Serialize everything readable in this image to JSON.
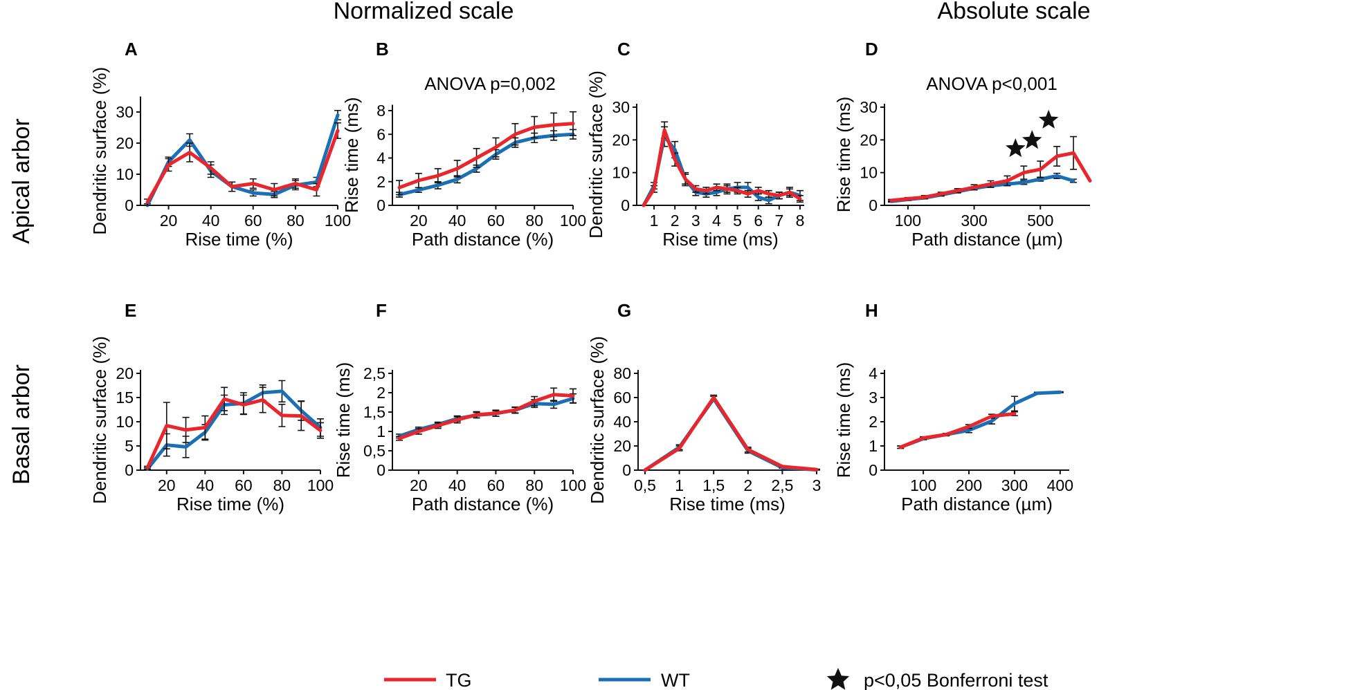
{
  "figure": {
    "column_titles": [
      "Normalized scale",
      "Absolute scale"
    ],
    "row_titles": [
      "Apical arbor",
      "Basal arbor"
    ],
    "legend": {
      "items": [
        {
          "label": "TG",
          "color": "#e8262b"
        },
        {
          "label": "WT",
          "color": "#1a6fb5"
        }
      ],
      "significance_label": "p<0,05 Bonferroni test"
    }
  },
  "chart_data": [
    {
      "panel": "A",
      "type": "line",
      "title": "",
      "xlabel": "Rise time (%)",
      "ylabel": "Dendritic surface (%)",
      "xlim": [
        10,
        100
      ],
      "ylim": [
        0,
        35
      ],
      "xticks": [
        20,
        40,
        60,
        80,
        100
      ],
      "xtick_labels": [
        "20",
        "40",
        "60",
        "80",
        "100"
      ],
      "yticks": [
        0,
        10,
        20,
        30
      ],
      "ytick_labels": [
        "0",
        "10",
        "20",
        "30"
      ],
      "x": [
        10,
        20,
        30,
        40,
        50,
        60,
        70,
        80,
        90,
        100
      ],
      "series": [
        {
          "name": "TG",
          "values": [
            1,
            13,
            17,
            12,
            6,
            7,
            5,
            7,
            5,
            24
          ],
          "errors": [
            1,
            2,
            3,
            2,
            1.5,
            1.5,
            2,
            1.5,
            2,
            2.5
          ]
        },
        {
          "name": "WT",
          "values": [
            0,
            14,
            21,
            11,
            6,
            4,
            3.5,
            6.5,
            7.5,
            29
          ],
          "errors": [
            0.5,
            1.5,
            2,
            2,
            1.5,
            1,
            1,
            1.5,
            1.5,
            1.5
          ]
        }
      ],
      "annotation": "",
      "stars_x": []
    },
    {
      "panel": "B",
      "type": "line",
      "title": "",
      "xlabel": "Path distance (%)",
      "ylabel": "Rise time (ms)",
      "xlim": [
        10,
        100
      ],
      "ylim": [
        0,
        8.5
      ],
      "xticks": [
        20,
        40,
        60,
        80,
        100
      ],
      "xtick_labels": [
        "20",
        "40",
        "60",
        "80",
        "100"
      ],
      "yticks": [
        0,
        2,
        4,
        6,
        8
      ],
      "ytick_labels": [
        "0",
        "2",
        "4",
        "6",
        "8"
      ],
      "x": [
        10,
        20,
        30,
        40,
        50,
        60,
        70,
        80,
        90,
        100
      ],
      "series": [
        {
          "name": "TG",
          "values": [
            1.5,
            2.1,
            2.5,
            3.1,
            4.0,
            4.9,
            6.0,
            6.6,
            6.8,
            6.9
          ],
          "errors": [
            0.6,
            0.6,
            0.6,
            0.7,
            0.8,
            0.8,
            0.9,
            0.9,
            1.0,
            1.0
          ]
        },
        {
          "name": "WT",
          "values": [
            0.9,
            1.3,
            1.7,
            2.2,
            3.1,
            4.3,
            5.3,
            5.7,
            5.9,
            6.0
          ],
          "errors": [
            0.2,
            0.2,
            0.3,
            0.3,
            0.3,
            0.4,
            0.4,
            0.4,
            0.4,
            0.4
          ]
        }
      ],
      "annotation": "ANOVA p=0,002",
      "stars_x": []
    },
    {
      "panel": "C",
      "type": "line",
      "title": "",
      "xlabel": "Rise time (ms)",
      "ylabel": "Dendritic surface (%)",
      "xlim": [
        0.5,
        8.2
      ],
      "ylim": [
        0,
        30
      ],
      "xticks": [
        1,
        2,
        3,
        4,
        5,
        6,
        7,
        8
      ],
      "xtick_labels": [
        "1",
        "2",
        "3",
        "4",
        "5",
        "6",
        "7",
        "8"
      ],
      "yticks": [
        0,
        10,
        20,
        30
      ],
      "ytick_labels": [
        "0",
        "10",
        "20",
        "30"
      ],
      "x": [
        0.5,
        1,
        1.5,
        2,
        2.5,
        3,
        3.5,
        4,
        4.5,
        5,
        5.5,
        6,
        6.5,
        7,
        7.5,
        8
      ],
      "series": [
        {
          "name": "TG",
          "values": [
            0,
            5,
            23,
            14,
            8,
            5,
            4.5,
            5.5,
            5,
            4.5,
            3.5,
            4.5,
            3.5,
            3,
            4,
            2
          ],
          "errors": [
            0,
            1,
            2.5,
            2,
            1.5,
            1,
            1,
            1,
            1,
            1,
            1,
            1,
            1,
            1,
            1,
            1
          ]
        },
        {
          "name": "WT",
          "values": [
            0,
            6,
            21,
            17,
            8,
            4,
            3.5,
            4,
            5,
            5.5,
            5.5,
            2.5,
            1.5,
            3,
            4,
            3
          ],
          "errors": [
            0,
            1,
            3,
            2.5,
            2,
            1,
            1,
            1,
            1.5,
            1.5,
            1.5,
            1,
            1,
            1,
            1.5,
            1.5
          ]
        }
      ],
      "annotation": "",
      "stars_x": []
    },
    {
      "panel": "D",
      "type": "line",
      "title": "",
      "xlabel": "Path distance (µm)",
      "ylabel": "Rise time (ms)",
      "xlim": [
        50,
        650
      ],
      "ylim": [
        0,
        30
      ],
      "xticks": [
        100,
        300,
        500
      ],
      "xtick_labels": [
        "100",
        "300",
        "500"
      ],
      "yticks": [
        0,
        10,
        20,
        30
      ],
      "ytick_labels": [
        "0",
        "10",
        "20",
        "30"
      ],
      "x": [
        50,
        100,
        150,
        200,
        250,
        300,
        350,
        400,
        450,
        500,
        550,
        600,
        650
      ],
      "series": [
        {
          "name": "TG",
          "values": [
            1.5,
            2,
            2.5,
            3.5,
            4.5,
            5.5,
            6.5,
            7.5,
            10,
            11,
            15,
            16,
            7.5
          ],
          "errors": [
            0.3,
            0.4,
            0.5,
            0.5,
            0.6,
            0.8,
            1,
            1.5,
            2,
            2.5,
            3,
            5,
            0
          ]
        },
        {
          "name": "WT",
          "values": [
            1.2,
            1.8,
            2.3,
            3.2,
            4.2,
            5.2,
            6,
            6.5,
            7,
            8,
            9,
            7.5,
            null
          ],
          "errors": [
            0.2,
            0.3,
            0.3,
            0.4,
            0.4,
            0.5,
            0.5,
            0.5,
            0.6,
            0.6,
            0.8,
            0.5,
            0
          ]
        }
      ],
      "annotation": "ANOVA p<0,001",
      "stars_x": [
        450,
        500,
        550
      ]
    },
    {
      "panel": "E",
      "type": "line",
      "title": "",
      "xlabel": "Rise time (%)",
      "ylabel": "Dendritic surface (%)",
      "xlim": [
        10,
        100
      ],
      "ylim": [
        0,
        20
      ],
      "xticks": [
        20,
        40,
        60,
        80,
        100
      ],
      "xtick_labels": [
        "20",
        "40",
        "60",
        "80",
        "100"
      ],
      "yticks": [
        0,
        5,
        10,
        15,
        20
      ],
      "ytick_labels": [
        "0",
        "5",
        "10",
        "15",
        "20"
      ],
      "x": [
        10,
        20,
        30,
        40,
        50,
        60,
        70,
        80,
        90,
        100
      ],
      "series": [
        {
          "name": "TG",
          "values": [
            0.5,
            9.2,
            8.3,
            8.8,
            14.7,
            13.5,
            14.5,
            11.3,
            11.2,
            8.2
          ],
          "errors": [
            0.3,
            4.8,
            2.6,
            2.4,
            2.4,
            2.0,
            2.6,
            2.3,
            3.0,
            1.6
          ]
        },
        {
          "name": "WT",
          "values": [
            0.2,
            5.2,
            4.8,
            7.8,
            13.5,
            13.8,
            16.0,
            16.3,
            12.3,
            8.8
          ],
          "errors": [
            0.3,
            2.3,
            2.2,
            1.6,
            2.0,
            2.2,
            1.6,
            2.2,
            2.0,
            1.8
          ]
        }
      ],
      "annotation": "",
      "stars_x": []
    },
    {
      "panel": "F",
      "type": "line",
      "title": "",
      "xlabel": "Path distance (%)",
      "ylabel": "Rise time (ms)",
      "xlim": [
        10,
        100
      ],
      "ylim": [
        0,
        2.5
      ],
      "xticks": [
        20,
        40,
        60,
        80,
        100
      ],
      "xtick_labels": [
        "20",
        "40",
        "60",
        "80",
        "100"
      ],
      "yticks": [
        0,
        0.5,
        1,
        1.5,
        2,
        2.5
      ],
      "ytick_labels": [
        "0",
        "0,5",
        "1",
        "1,5",
        "2",
        "2,5"
      ],
      "x": [
        10,
        20,
        30,
        40,
        50,
        60,
        70,
        80,
        90,
        100
      ],
      "series": [
        {
          "name": "TG",
          "values": [
            0.82,
            1.0,
            1.15,
            1.3,
            1.43,
            1.47,
            1.55,
            1.78,
            1.95,
            1.92
          ],
          "errors": [
            0.05,
            0.07,
            0.07,
            0.08,
            0.08,
            0.08,
            0.08,
            0.12,
            0.17,
            0.18
          ]
        },
        {
          "name": "WT",
          "values": [
            0.88,
            1.05,
            1.18,
            1.33,
            1.42,
            1.46,
            1.55,
            1.72,
            1.7,
            1.85
          ],
          "errors": [
            0.05,
            0.06,
            0.06,
            0.07,
            0.07,
            0.07,
            0.07,
            0.1,
            0.1,
            0.12
          ]
        }
      ],
      "annotation": "",
      "stars_x": []
    },
    {
      "panel": "G",
      "type": "line",
      "title": "",
      "xlabel": "Rise time (ms)",
      "ylabel": "Dendritic surface (%)",
      "xlim": [
        0.5,
        3
      ],
      "ylim": [
        0,
        80
      ],
      "xticks": [
        0.5,
        1,
        1.5,
        2,
        2.5,
        3
      ],
      "xtick_labels": [
        "0,5",
        "1",
        "1,5",
        "2",
        "2,5",
        "3"
      ],
      "yticks": [
        0,
        20,
        40,
        60,
        80
      ],
      "ytick_labels": [
        "0",
        "20",
        "40",
        "60",
        "80"
      ],
      "x": [
        0.5,
        1,
        1.5,
        2,
        2.5,
        3
      ],
      "series": [
        {
          "name": "TG",
          "values": [
            0,
            18,
            60,
            17,
            3,
            0.5
          ],
          "errors": [
            0,
            2,
            2,
            2,
            0.5,
            0.3
          ]
        },
        {
          "name": "WT",
          "values": [
            0,
            19,
            59,
            16,
            2,
            0.3
          ],
          "errors": [
            0,
            2,
            2,
            2,
            0.5,
            0.3
          ]
        }
      ],
      "annotation": "",
      "stars_x": []
    },
    {
      "panel": "H",
      "type": "line",
      "title": "",
      "xlabel": "Path distance (µm)",
      "ylabel": "Rise time (ms)",
      "xlim": [
        30,
        420
      ],
      "ylim": [
        0,
        4
      ],
      "xticks": [
        100,
        200,
        300,
        400
      ],
      "xtick_labels": [
        "100",
        "200",
        "300",
        "400"
      ],
      "yticks": [
        0,
        1,
        2,
        3,
        4
      ],
      "ytick_labels": [
        "0",
        "1",
        "2",
        "3",
        "4"
      ],
      "x": [
        50,
        100,
        150,
        200,
        250,
        300,
        350,
        400
      ],
      "series": [
        {
          "name": "TG",
          "values": [
            0.95,
            1.33,
            1.47,
            1.8,
            2.23,
            2.33,
            null,
            null
          ],
          "errors": [
            0.05,
            0.05,
            0.05,
            0.08,
            0.08,
            0.08,
            0,
            0
          ]
        },
        {
          "name": "WT",
          "values": [
            0.95,
            1.3,
            1.47,
            1.65,
            2.03,
            2.75,
            3.18,
            3.22
          ],
          "errors": [
            0.05,
            0.05,
            0.05,
            0.1,
            0.12,
            0.3,
            0.04,
            0.02
          ]
        }
      ],
      "annotation": "",
      "stars_x": []
    }
  ]
}
